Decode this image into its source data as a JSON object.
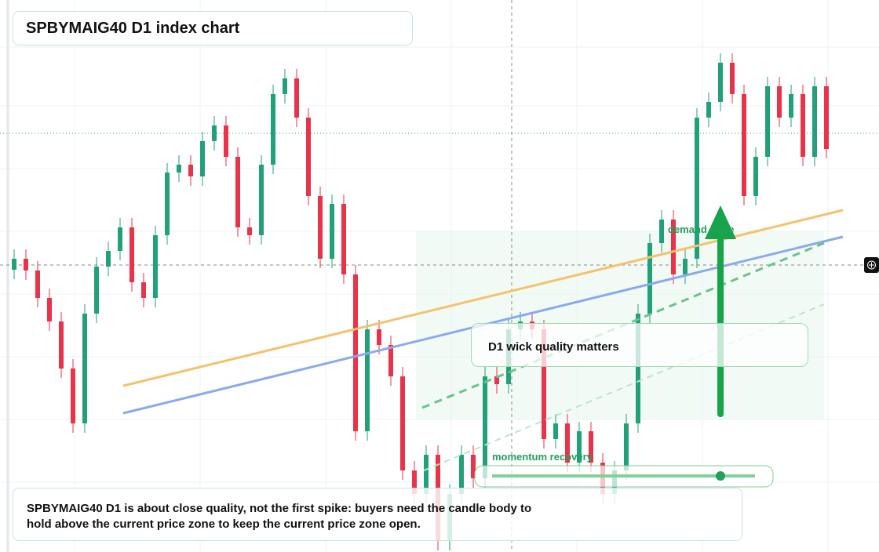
{
  "chart_data": {
    "type": "candlestick",
    "title": "SPBYMAIG40 D1 index chart",
    "annotations": {
      "zone": "demand node",
      "momentum": "momentum recovery",
      "callout": "D1 wick quality matters",
      "note": "SPBYMAIG40 D1 is about close quality, not the first spike: buyers need the candle body to hold above the current price zone to keep the current price zone open."
    },
    "up_color": "#22a07a",
    "down_color": "#e8334a",
    "ylim": [
      0,
      704
    ],
    "open": [
      360,
      374,
      359,
      324,
      294,
      234,
      164,
      304,
      364,
      384,
      414,
      344,
      324,
      404,
      484,
      494,
      479,
      524,
      544,
      504,
      414,
      404,
      494,
      584,
      604,
      554,
      454,
      374,
      444,
      354,
      154,
      284,
      264,
      224,
      104,
      74,
      124,
      14,
      74,
      124,
      94,
      224,
      214,
      284,
      294,
      284,
      144,
      164,
      114,
      154,
      114,
      74,
      104,
      164,
      304,
      394,
      424,
      354,
      374,
      554,
      574,
      624,
      584,
      454,
      504,
      594,
      554,
      584,
      504,
      594
    ],
    "high": [
      386,
      386,
      371,
      336,
      306,
      246,
      316,
      376,
      396,
      426,
      426,
      356,
      416,
      496,
      506,
      506,
      536,
      556,
      556,
      516,
      426,
      506,
      596,
      616,
      616,
      566,
      466,
      456,
      456,
      366,
      296,
      296,
      276,
      236,
      116,
      136,
      136,
      86,
      136,
      136,
      236,
      236,
      296,
      306,
      306,
      296,
      176,
      176,
      166,
      166,
      126,
      116,
      176,
      316,
      406,
      436,
      436,
      386,
      566,
      586,
      636,
      636,
      596,
      516,
      606,
      606,
      596,
      596,
      606,
      606
    ],
    "low": [
      348,
      347,
      312,
      282,
      222,
      152,
      152,
      292,
      352,
      372,
      332,
      312,
      312,
      392,
      472,
      467,
      467,
      512,
      492,
      402,
      392,
      392,
      482,
      572,
      542,
      442,
      362,
      362,
      342,
      142,
      142,
      252,
      212,
      92,
      62,
      62,
      2,
      2,
      62,
      82,
      82,
      202,
      202,
      272,
      272,
      132,
      132,
      102,
      102,
      102,
      62,
      62,
      92,
      152,
      292,
      382,
      342,
      342,
      362,
      542,
      562,
      572,
      442,
      442,
      492,
      542,
      542,
      492,
      492,
      502
    ],
    "close": [
      374,
      359,
      324,
      294,
      234,
      164,
      304,
      364,
      384,
      414,
      344,
      324,
      404,
      484,
      494,
      479,
      524,
      544,
      504,
      414,
      404,
      494,
      584,
      604,
      554,
      454,
      374,
      444,
      354,
      154,
      284,
      264,
      224,
      104,
      74,
      124,
      14,
      74,
      124,
      94,
      224,
      214,
      284,
      294,
      284,
      144,
      164,
      114,
      154,
      114,
      74,
      104,
      164,
      304,
      394,
      424,
      354,
      374,
      554,
      574,
      624,
      584,
      454,
      504,
      594,
      554,
      584,
      504,
      594,
      514
    ]
  }
}
